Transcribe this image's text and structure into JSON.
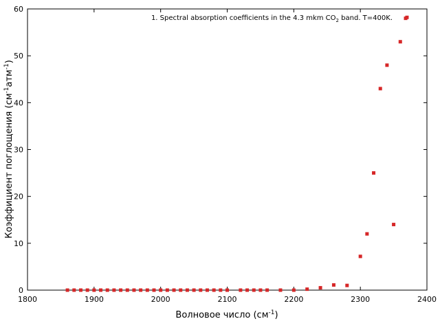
{
  "chart_data": {
    "type": "scatter",
    "legend": {
      "prefix": "1. Spectral absorption coefficients in the 4.3 mkm CO",
      "subscript": "2",
      "suffix": " band. T=400K.",
      "placement": "top-right"
    },
    "xlabel": {
      "main": "Волновое число (см",
      "sup": "-1",
      "close": ")"
    },
    "ylabel": {
      "main": "Коэффициент поглощения (см",
      "sup1": "-1",
      "mid": "атм",
      "sup2": "-1",
      "close": ")"
    },
    "xlim": [
      1800,
      2400
    ],
    "ylim": [
      0,
      60
    ],
    "xticks": [
      1800,
      1900,
      2000,
      2100,
      2200,
      2300,
      2400
    ],
    "yticks": [
      0,
      10,
      20,
      30,
      40,
      50,
      60
    ],
    "grid": false,
    "marker_color": "#d62728",
    "series": [
      {
        "points": [
          [
            1860,
            0
          ],
          [
            1870,
            0
          ],
          [
            1880,
            0
          ],
          [
            1890,
            0
          ],
          [
            1900,
            0
          ],
          [
            1910,
            0
          ],
          [
            1920,
            0
          ],
          [
            1930,
            0
          ],
          [
            1940,
            0
          ],
          [
            1950,
            0
          ],
          [
            1960,
            0
          ],
          [
            1970,
            0
          ],
          [
            1980,
            0
          ],
          [
            1990,
            0
          ],
          [
            2000,
            0
          ],
          [
            2010,
            0
          ],
          [
            2020,
            0
          ],
          [
            2030,
            0
          ],
          [
            2040,
            0
          ],
          [
            2050,
            0
          ],
          [
            2060,
            0
          ],
          [
            2070,
            0
          ],
          [
            2080,
            0
          ],
          [
            2090,
            0
          ],
          [
            2100,
            0
          ],
          [
            2120,
            0
          ],
          [
            2130,
            0
          ],
          [
            2140,
            0
          ],
          [
            2150,
            0
          ],
          [
            2160,
            0
          ],
          [
            2180,
            0
          ],
          [
            2200,
            0
          ],
          [
            2220,
            0.2
          ],
          [
            2240,
            0.5
          ],
          [
            2260,
            1.1
          ],
          [
            2280,
            1.0
          ],
          [
            2300,
            7.2
          ],
          [
            2310,
            12
          ],
          [
            2320,
            25
          ],
          [
            2330,
            43
          ],
          [
            2340,
            48
          ],
          [
            2350,
            14
          ],
          [
            2360,
            53
          ],
          [
            2368,
            58
          ],
          [
            2370,
            58.2
          ]
        ]
      }
    ]
  }
}
